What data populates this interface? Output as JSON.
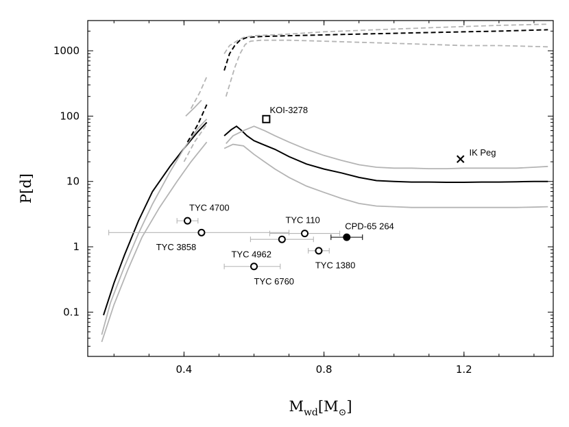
{
  "chart_data": {
    "type": "scatter",
    "title": "",
    "xlabel": {
      "main": "M",
      "sub": "wd",
      "open": "[M",
      "sub2": "⊙",
      "close": "]"
    },
    "ylabel": "P[d]",
    "xlim": [
      0.125,
      1.455
    ],
    "ylim": [
      0.021,
      2900
    ],
    "yscale": "log",
    "grid": false,
    "x_ticks": [
      {
        "v": 0.4,
        "label": "0.4"
      },
      {
        "v": 0.8,
        "label": "0.8"
      },
      {
        "v": 1.2,
        "label": "1.2"
      }
    ],
    "y_ticks": [
      {
        "v": 0.1,
        "label": "0.1"
      },
      {
        "v": 1,
        "label": "1"
      },
      {
        "v": 10,
        "label": "10"
      },
      {
        "v": 100,
        "label": "100"
      },
      {
        "v": 1000,
        "label": "1000"
      }
    ],
    "colors": {
      "model": "#000000",
      "envelope": "#b4b4b4",
      "errorbar": "#b4b4b4"
    },
    "curves": [
      {
        "style": "solid",
        "color": "#000000",
        "points": [
          [
            0.17,
            0.09
          ],
          [
            0.2,
            0.28
          ],
          [
            0.23,
            0.75
          ],
          [
            0.27,
            2.5
          ],
          [
            0.31,
            7
          ],
          [
            0.36,
            17
          ],
          [
            0.4,
            32
          ],
          [
            0.44,
            58
          ],
          [
            0.465,
            80
          ]
        ]
      },
      {
        "style": "solid",
        "color": "#b4b4b4",
        "points": [
          [
            0.165,
            0.045
          ],
          [
            0.19,
            0.14
          ],
          [
            0.23,
            0.5
          ],
          [
            0.27,
            1.6
          ],
          [
            0.31,
            4.5
          ],
          [
            0.36,
            14
          ],
          [
            0.4,
            32
          ],
          [
            0.44,
            65
          ],
          [
            0.465,
            90
          ]
        ]
      },
      {
        "style": "solid",
        "color": "#b4b4b4",
        "points": [
          [
            0.165,
            0.035
          ],
          [
            0.2,
            0.13
          ],
          [
            0.24,
            0.45
          ],
          [
            0.28,
            1.4
          ],
          [
            0.33,
            4
          ],
          [
            0.38,
            10
          ],
          [
            0.42,
            20
          ],
          [
            0.465,
            40
          ]
        ]
      },
      {
        "style": "solid",
        "color": "#b4b4b4",
        "points": [
          [
            0.405,
            100
          ],
          [
            0.43,
            135
          ],
          [
            0.45,
            175
          ]
        ]
      },
      {
        "style": "dashed",
        "color": "#000000",
        "points": [
          [
            0.41,
            40
          ],
          [
            0.44,
            75
          ],
          [
            0.465,
            150
          ]
        ]
      },
      {
        "style": "dashed",
        "color": "#b4b4b4",
        "points": [
          [
            0.42,
            130
          ],
          [
            0.445,
            230
          ],
          [
            0.465,
            400
          ]
        ]
      },
      {
        "style": "dashed",
        "color": "#b4b4b4",
        "points": [
          [
            0.4,
            20
          ],
          [
            0.43,
            40
          ],
          [
            0.465,
            75
          ]
        ]
      },
      {
        "style": "solid",
        "color": "#000000",
        "points": [
          [
            0.515,
            50
          ],
          [
            0.535,
            62
          ],
          [
            0.55,
            70
          ],
          [
            0.565,
            60
          ],
          [
            0.58,
            50
          ],
          [
            0.6,
            42
          ],
          [
            0.63,
            36
          ],
          [
            0.66,
            31
          ],
          [
            0.7,
            24
          ],
          [
            0.75,
            18.5
          ],
          [
            0.8,
            15.5
          ],
          [
            0.85,
            13.5
          ],
          [
            0.9,
            11.5
          ],
          [
            0.95,
            10.3
          ],
          [
            1.0,
            10
          ],
          [
            1.05,
            9.8
          ],
          [
            1.1,
            9.8
          ],
          [
            1.15,
            9.7
          ],
          [
            1.2,
            9.7
          ],
          [
            1.25,
            9.8
          ],
          [
            1.3,
            9.8
          ],
          [
            1.35,
            9.9
          ],
          [
            1.4,
            10
          ],
          [
            1.44,
            10
          ]
        ]
      },
      {
        "style": "solid",
        "color": "#b4b4b4",
        "points": [
          [
            0.52,
            38
          ],
          [
            0.54,
            50
          ],
          [
            0.57,
            60
          ],
          [
            0.6,
            70
          ],
          [
            0.63,
            60
          ],
          [
            0.66,
            50
          ],
          [
            0.7,
            40
          ],
          [
            0.75,
            31
          ],
          [
            0.8,
            25
          ],
          [
            0.85,
            21
          ],
          [
            0.9,
            18
          ],
          [
            0.95,
            16.5
          ],
          [
            1.0,
            16
          ],
          [
            1.05,
            16
          ],
          [
            1.1,
            15.7
          ],
          [
            1.15,
            15.7
          ],
          [
            1.2,
            16
          ],
          [
            1.25,
            16
          ],
          [
            1.3,
            16
          ],
          [
            1.35,
            16
          ],
          [
            1.4,
            16.5
          ],
          [
            1.44,
            17
          ]
        ]
      },
      {
        "style": "solid",
        "color": "#b4b4b4",
        "points": [
          [
            0.515,
            32
          ],
          [
            0.54,
            37
          ],
          [
            0.57,
            35
          ],
          [
            0.6,
            26
          ],
          [
            0.63,
            20
          ],
          [
            0.66,
            15.5
          ],
          [
            0.7,
            11.5
          ],
          [
            0.75,
            8.5
          ],
          [
            0.8,
            6.8
          ],
          [
            0.85,
            5.5
          ],
          [
            0.9,
            4.6
          ],
          [
            0.95,
            4.2
          ],
          [
            1.0,
            4.1
          ],
          [
            1.05,
            4.0
          ],
          [
            1.1,
            4.0
          ],
          [
            1.15,
            4.0
          ],
          [
            1.2,
            4.0
          ],
          [
            1.25,
            4.0
          ],
          [
            1.3,
            4.0
          ],
          [
            1.35,
            4.0
          ],
          [
            1.4,
            4.05
          ],
          [
            1.44,
            4.1
          ]
        ]
      },
      {
        "style": "dashed",
        "color": "#000000",
        "points": [
          [
            0.515,
            500
          ],
          [
            0.53,
            900
          ],
          [
            0.545,
            1200
          ],
          [
            0.56,
            1450
          ],
          [
            0.58,
            1600
          ],
          [
            0.62,
            1650
          ],
          [
            0.7,
            1700
          ],
          [
            0.8,
            1750
          ],
          [
            0.9,
            1800
          ],
          [
            1.0,
            1850
          ],
          [
            1.1,
            1900
          ],
          [
            1.2,
            1950
          ],
          [
            1.3,
            2000
          ],
          [
            1.44,
            2100
          ]
        ]
      },
      {
        "style": "dashed",
        "color": "#b4b4b4",
        "points": [
          [
            0.515,
            900
          ],
          [
            0.53,
            1200
          ],
          [
            0.55,
            1400
          ],
          [
            0.57,
            1600
          ],
          [
            0.6,
            1700
          ],
          [
            0.7,
            1800
          ],
          [
            0.8,
            1950
          ],
          [
            0.9,
            2050
          ],
          [
            1.0,
            2150
          ],
          [
            1.1,
            2250
          ],
          [
            1.2,
            2350
          ],
          [
            1.3,
            2450
          ],
          [
            1.44,
            2550
          ]
        ]
      },
      {
        "style": "dashed",
        "color": "#b4b4b4",
        "points": [
          [
            0.52,
            200
          ],
          [
            0.53,
            300
          ],
          [
            0.545,
            550
          ],
          [
            0.56,
            900
          ],
          [
            0.575,
            1250
          ],
          [
            0.59,
            1400
          ],
          [
            0.62,
            1450
          ],
          [
            0.7,
            1450
          ],
          [
            0.8,
            1400
          ],
          [
            0.9,
            1350
          ],
          [
            1.0,
            1300
          ],
          [
            1.1,
            1250
          ],
          [
            1.2,
            1200
          ],
          [
            1.3,
            1200
          ],
          [
            1.44,
            1150
          ]
        ]
      }
    ],
    "points": [
      {
        "label": "TYC 4700",
        "x": 0.41,
        "y": 2.5,
        "xerr": [
          0.38,
          0.44
        ],
        "marker": "open-circle",
        "color": "#b4b4b4",
        "ann_x": 0.415,
        "ann_y": 4.0,
        "ann_anchor": "start"
      },
      {
        "label": "TYC 3858",
        "x": 0.45,
        "y": 1.65,
        "xerr": [
          0.185,
          0.7
        ],
        "marker": "open-circle",
        "color": "#b4b4b4",
        "ann_x": 0.435,
        "ann_y": 1.0,
        "ann_anchor": "end"
      },
      {
        "label": "TYC 4962",
        "x": 0.68,
        "y": 1.3,
        "xerr": [
          0.59,
          0.77
        ],
        "marker": "open-circle",
        "color": "#b4b4b4",
        "ann_x": 0.65,
        "ann_y": 0.78,
        "ann_anchor": "end"
      },
      {
        "label": "TYC 110",
        "x": 0.745,
        "y": 1.6,
        "xerr": [
          0.645,
          0.845
        ],
        "marker": "open-circle",
        "color": "#b4b4b4",
        "ann_x": 0.69,
        "ann_y": 2.6,
        "ann_anchor": "start"
      },
      {
        "label": "TYC 1380",
        "x": 0.785,
        "y": 0.87,
        "xerr": [
          0.755,
          0.815
        ],
        "marker": "open-circle",
        "color": "#b4b4b4",
        "ann_x": 0.775,
        "ann_y": 0.53,
        "ann_anchor": "start"
      },
      {
        "label": "TYC 6760",
        "x": 0.6,
        "y": 0.5,
        "xerr": [
          0.515,
          0.675
        ],
        "marker": "open-circle",
        "color": "#b4b4b4",
        "ann_x": 0.6,
        "ann_y": 0.3,
        "ann_anchor": "start"
      },
      {
        "label": "CPD-65 264",
        "x": 0.865,
        "y": 1.4,
        "xerr": [
          0.82,
          0.91
        ],
        "marker": "filled-circle",
        "color": "#000000",
        "ann_x": 0.86,
        "ann_y": 2.1,
        "ann_anchor": "start"
      },
      {
        "label": "KOI-3278",
        "x": 0.635,
        "y": 90,
        "marker": "open-square",
        "color": "#000000",
        "ann_x": 0.645,
        "ann_y": 125,
        "ann_anchor": "start"
      },
      {
        "label": "IK Peg",
        "x": 1.19,
        "y": 22,
        "marker": "cross",
        "color": "#000000",
        "ann_x": 1.215,
        "ann_y": 28,
        "ann_anchor": "start"
      }
    ]
  }
}
